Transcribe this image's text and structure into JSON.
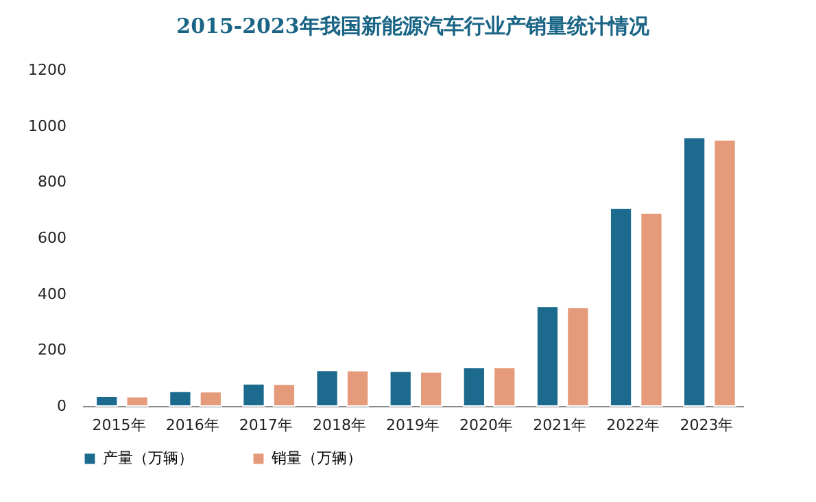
{
  "chart_data": {
    "type": "bar",
    "title": "2015-2023年我国新能源汽车行业产销量统计情况",
    "categories": [
      "2015年",
      "2016年",
      "2017年",
      "2018年",
      "2019年",
      "2020年",
      "2021年",
      "2022年",
      "2023年"
    ],
    "series": [
      {
        "name": "产量（万辆）",
        "color": "#1c6b8f",
        "values": [
          34,
          52,
          79,
          127,
          124,
          137,
          355,
          706,
          959
        ]
      },
      {
        "name": "销量（万辆）",
        "color": "#e59b7a",
        "values": [
          33,
          51,
          78,
          126,
          121,
          137,
          352,
          689,
          950
        ]
      }
    ],
    "ylim": [
      0,
      1200
    ],
    "yticks": [
      0,
      200,
      400,
      600,
      800,
      1000,
      1200
    ],
    "grid": false,
    "legend": "bottom"
  }
}
